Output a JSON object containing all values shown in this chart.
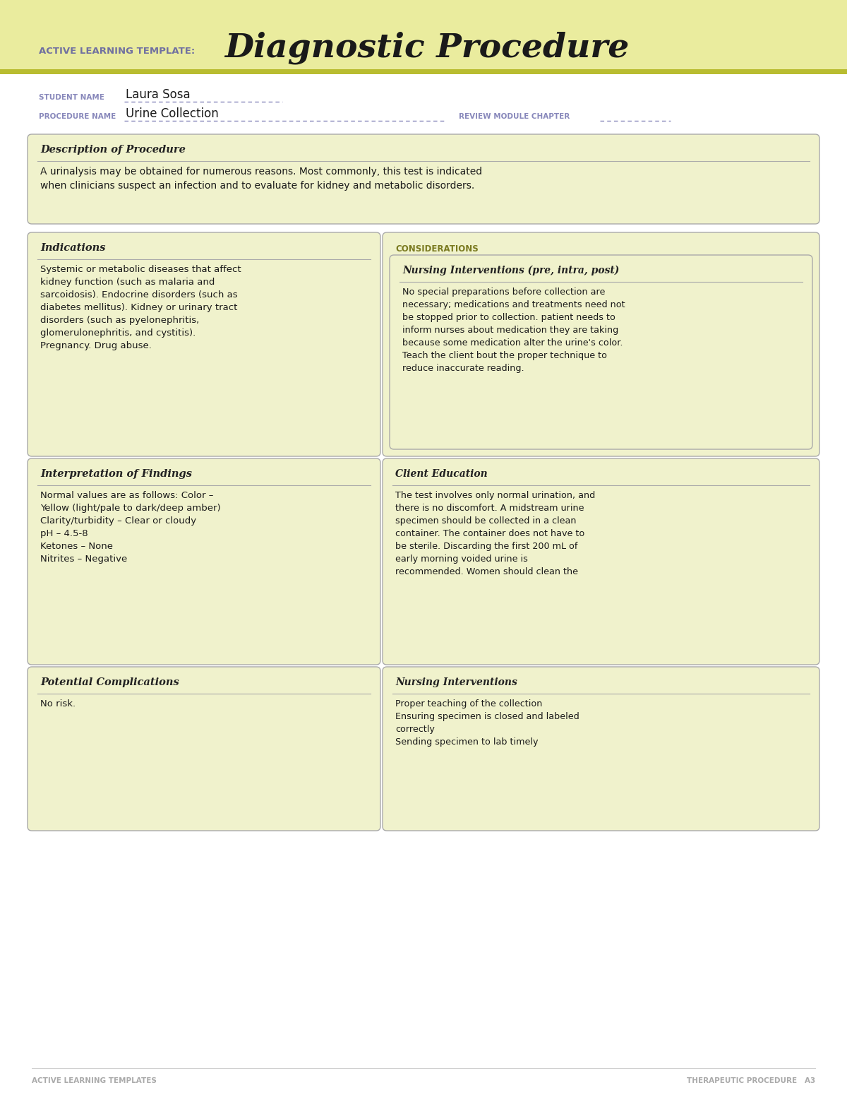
{
  "page_bg": "#ffffff",
  "header_bg": "#eaec9e",
  "header_stripe_color": "#b8bc30",
  "header_label": "ACTIVE LEARNING TEMPLATE:",
  "header_title": "Diagnostic Procedure",
  "header_label_color": "#7070a0",
  "header_title_color": "#1a1a1a",
  "student_name_label": "STUDENT NAME",
  "student_name_value": "Laura Sosa",
  "procedure_name_label": "PROCEDURE NAME",
  "procedure_name_value": "Urine Collection",
  "review_module_label": "REVIEW MODULE CHAPTER",
  "label_color": "#8888bb",
  "box_bg": "#f0f2cc",
  "box_border": "#aaaaaa",
  "white_bg": "#ffffff",
  "section_title_color": "#222222",
  "considerations_color": "#7a7a20",
  "desc_title": "Description of Procedure",
  "desc_text": "A urinalysis may be obtained for numerous reasons. Most commonly, this test is indicated\nwhen clinicians suspect an infection and to evaluate for kidney and metabolic disorders.",
  "indications_title": "Indications",
  "indications_text": "Systemic or metabolic diseases that affect\nkidney function (such as malaria and\nsarcoidosis). Endocrine disorders (such as\ndiabetes mellitus). Kidney or urinary tract\ndisorders (such as pyelonephritis,\nglomerulonephritis, and cystitis).\nPregnancy. Drug abuse.",
  "considerations_label": "CONSIDERATIONS",
  "nursing_interventions_title": "Nursing Interventions (pre, intra, post)",
  "nursing_interventions_text": "No special preparations before collection are\nnecessary; medications and treatments need not\nbe stopped prior to collection. patient needs to\ninform nurses about medication they are taking\nbecause some medication alter the urine's color.\nTeach the client bout the proper technique to\nreduce inaccurate reading.",
  "interpretation_title": "Interpretation of Findings",
  "interpretation_text": "Normal values are as follows: Color –\nYellow (light/pale to dark/deep amber)\nClarity/turbidity – Clear or cloudy\npH – 4.5-8\nKetones – None\nNitrites – Negative",
  "client_edu_title": "Client Education",
  "client_edu_text": "The test involves only normal urination, and\nthere is no discomfort. A midstream urine\nspecimen should be collected in a clean\ncontainer. The container does not have to\nbe sterile. Discarding the first 200 mL of\nearly morning voided urine is\nrecommended. Women should clean the",
  "complications_title": "Potential Complications",
  "complications_text": "No risk.",
  "nursing_int2_title": "Nursing Interventions",
  "nursing_int2_text": "Proper teaching of the collection\nEnsuring specimen is closed and labeled\ncorrectly\nSending specimen to lab timely",
  "footer_left": "ACTIVE LEARNING TEMPLATES",
  "footer_right": "THERAPEUTIC PROCEDURE   A3",
  "footer_color": "#aaaaaa"
}
